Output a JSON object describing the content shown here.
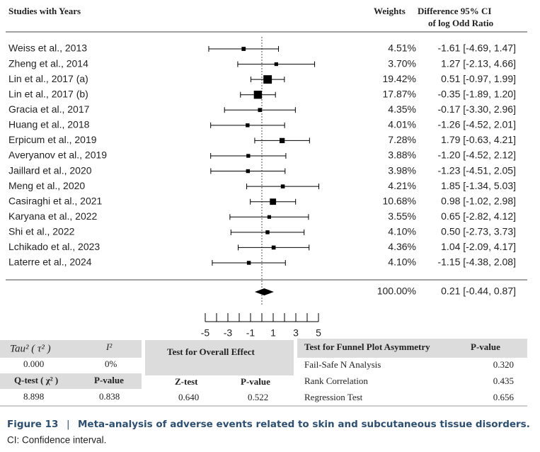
{
  "chart_data": {
    "type": "forest",
    "headers": {
      "study": "Studies with Years",
      "weight": "Weights",
      "ci_line1": "Difference 95% CI",
      "ci_line2": "of log Odd Ratio"
    },
    "categories": [
      "Weiss  et  al., 2013",
      "Zheng et al., 2014",
      "Lin et al., 2017 (a)",
      "Lin et al., 2017 (b)",
      "Gracia et al., 2017",
      "Huang et al., 2018",
      "Erpicum et al., 2019",
      "Averyanov et al., 2019",
      "Jaillard et al., 2020",
      "Meng et al., 2020",
      "Casiraghi  et al., 2021",
      "Karyana et al., 2022",
      "Shi et al., 2022",
      "Lchikado et al., 2023",
      "Laterre et al., 2024"
    ],
    "values": [
      -1.61,
      1.27,
      0.51,
      -0.35,
      -0.17,
      -1.26,
      1.79,
      -1.2,
      -1.23,
      1.85,
      0.98,
      0.65,
      0.5,
      1.04,
      -1.15
    ],
    "lower": [
      -4.69,
      -2.13,
      -0.97,
      -1.89,
      -3.3,
      -4.52,
      -0.63,
      -4.52,
      -4.51,
      -1.34,
      -1.02,
      -2.82,
      -2.73,
      -2.09,
      -4.38
    ],
    "upper": [
      1.47,
      4.66,
      1.99,
      1.2,
      2.96,
      2.01,
      4.21,
      2.12,
      2.05,
      5.03,
      2.98,
      4.12,
      3.73,
      4.17,
      2.08
    ],
    "weights": [
      4.51,
      3.7,
      19.42,
      17.87,
      4.35,
      4.01,
      7.28,
      3.88,
      3.98,
      4.21,
      10.68,
      3.55,
      4.1,
      4.36,
      4.1
    ],
    "weight_labels": [
      "4.51%",
      "3.70%",
      "19.42%",
      "17.87%",
      "4.35%",
      "4.01%",
      "7.28%",
      "3.88%",
      "3.98%",
      "4.21%",
      "10.68%",
      "3.55%",
      "4.10%",
      "4.36%",
      "4.10%"
    ],
    "value_labels": [
      "-1.61 [-4.69, 1.47]",
      "1.27 [-2.13, 4.66]",
      "0.51 [-0.97, 1.99]",
      "-0.35 [-1.89, 1.20]",
      "-0.17 [-3.30, 2.96]",
      "-1.26 [-4.52, 2.01]",
      "1.79 [-0.63, 4.21]",
      "-1.20 [-4.52, 2.12]",
      "-1.23 [-4.51, 2.05]",
      "1.85 [-1.34, 5.03]",
      "0.98 [-1.02, 2.98]",
      "0.65 [-2.82, 4.12]",
      "0.50 [-2.73, 3.73]",
      "1.04 [-2.09, 4.17]",
      "-1.15 [-4.38, 2.08]"
    ],
    "overall": {
      "value": 0.21,
      "lower": -0.44,
      "upper": 0.87,
      "weight_label": "100.00%",
      "value_label": "0.21 [-0.44, 0.87]"
    },
    "reference_line": 0,
    "xlim": [
      -5,
      5
    ],
    "xticks": [
      -5,
      -3,
      -1,
      1,
      3,
      5
    ],
    "minor_xticks": [
      -4,
      -2,
      0,
      2,
      4
    ],
    "color": "#000000"
  },
  "tables": {
    "heterogeneity": {
      "rows": [
        [
          "Tau² ( τ² )",
          "I²"
        ],
        [
          "0.000",
          "0%"
        ],
        [
          "Q-test ( χ² )",
          "P-value"
        ],
        [
          "8.898",
          "0.838"
        ]
      ]
    },
    "overall_effect": {
      "title": "Test for Overall Effect",
      "rows": [
        [
          "Z-test",
          "P-value"
        ],
        [
          "0.640",
          "0.522"
        ]
      ]
    },
    "funnel": {
      "header": [
        "Test for Funnel Plot Asymmetry",
        "P-value"
      ],
      "rows": [
        [
          "Fail-Safe N Analysis",
          "0.320"
        ],
        [
          "Rank Correlation",
          "0.435"
        ],
        [
          "Regression Test",
          "0.656"
        ]
      ]
    }
  },
  "caption": {
    "figure": "Figure 13",
    "separator": "|",
    "text": "Meta-analysis of adverse events related to skin and subcutaneous tissue disorders.",
    "note": "CI: Confidence interval."
  }
}
